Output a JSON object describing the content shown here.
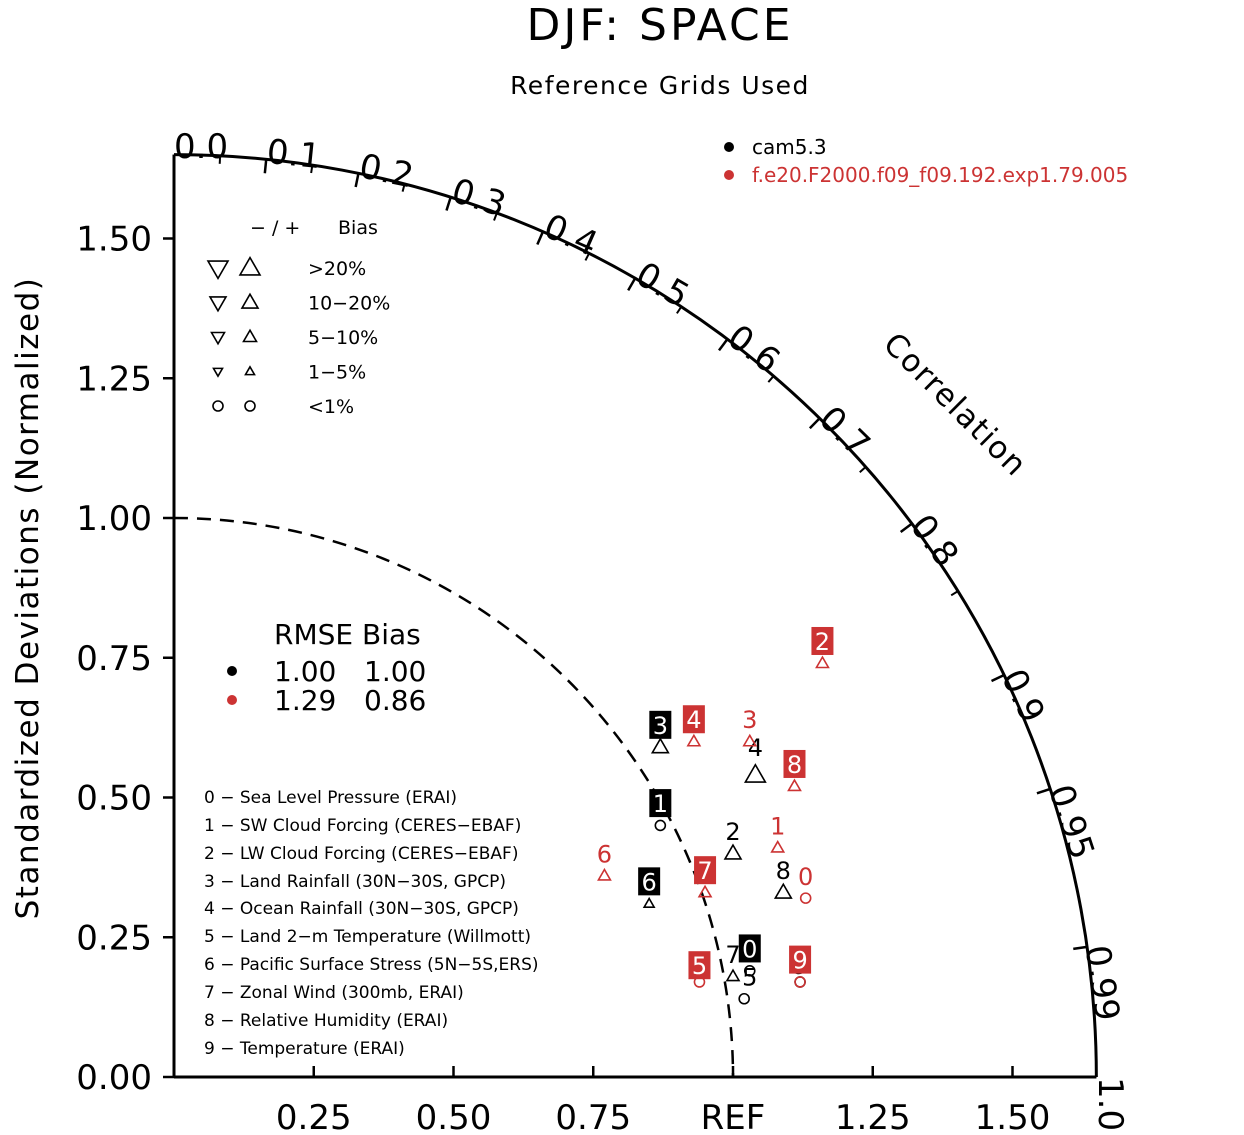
{
  "chart_data": {
    "type": "scatter",
    "subtype": "taylor-diagram",
    "title": "DJF: SPACE",
    "subtitle": "Reference Grids Used",
    "ylabel": "Standardized Deviations (Normalized)",
    "angular_label": "Correlation",
    "std_range": [
      0,
      1.65
    ],
    "std_ticks": [
      "0.00",
      "0.25",
      "0.50",
      "0.75",
      "1.00",
      "1.25",
      "1.50"
    ],
    "x_ticks": [
      "0.25",
      "0.50",
      "0.75",
      "REF",
      "1.25",
      "1.50"
    ],
    "corr_ticks": [
      {
        "value": 0.0,
        "label": "0.0"
      },
      {
        "value": 0.1,
        "label": "0.1"
      },
      {
        "value": 0.2,
        "label": "0.2"
      },
      {
        "value": 0.3,
        "label": "0.3"
      },
      {
        "value": 0.4,
        "label": "0.4"
      },
      {
        "value": 0.5,
        "label": "0.5"
      },
      {
        "value": 0.6,
        "label": "0.6"
      },
      {
        "value": 0.7,
        "label": "0.7"
      },
      {
        "value": 0.8,
        "label": "0.8"
      },
      {
        "value": 0.9,
        "label": "0.9"
      },
      {
        "value": 0.95,
        "label": "0.95"
      },
      {
        "value": 0.99,
        "label": "0.99"
      },
      {
        "value": 1.0,
        "label": "1.0"
      }
    ],
    "reference_std": 1.0,
    "series": [
      {
        "name": "cam5.3",
        "color": "#000000",
        "rmse": "1.00",
        "bias": "1.00",
        "points": [
          {
            "id": "0",
            "x": 1.03,
            "y": 0.23,
            "boxed": true,
            "mx": 1.03,
            "my": 0.19,
            "marker": "circle",
            "size": 5
          },
          {
            "id": "1",
            "x": 0.87,
            "y": 0.49,
            "boxed": true,
            "mx": 0.87,
            "my": 0.45,
            "marker": "circle",
            "size": 5
          },
          {
            "id": "2",
            "x": 1.0,
            "y": 0.44,
            "boxed": false,
            "mx": 1.0,
            "my": 0.4,
            "marker": "up",
            "size": 8
          },
          {
            "id": "3",
            "x": 0.87,
            "y": 0.63,
            "boxed": true,
            "mx": 0.87,
            "my": 0.59,
            "marker": "up",
            "size": 8
          },
          {
            "id": "4",
            "x": 1.04,
            "y": 0.59,
            "boxed": false,
            "mx": 1.04,
            "my": 0.54,
            "marker": "up",
            "size": 10
          },
          {
            "id": "5",
            "x": 1.03,
            "y": 0.18,
            "boxed": false,
            "mx": 1.02,
            "my": 0.14,
            "marker": "circle",
            "size": 5
          },
          {
            "id": "6",
            "x": 0.85,
            "y": 0.35,
            "boxed": true,
            "mx": 0.85,
            "my": 0.31,
            "marker": "up",
            "size": 5
          },
          {
            "id": "7",
            "x": 1.0,
            "y": 0.22,
            "boxed": false,
            "mx": 1.0,
            "my": 0.18,
            "marker": "up",
            "size": 6
          },
          {
            "id": "8",
            "x": 1.09,
            "y": 0.37,
            "boxed": false,
            "mx": 1.09,
            "my": 0.33,
            "marker": "up",
            "size": 8
          },
          {
            "id": "9",
            "x": 1.12,
            "y": 0.2,
            "boxed": false,
            "mx": 1.12,
            "my": 0.17,
            "marker": "circle",
            "size": 5
          }
        ]
      },
      {
        "name": "f.e20.F2000.f09_f09.192.exp1.79.005",
        "color": "#cc3333",
        "rmse": "1.29",
        "bias": "0.86",
        "points": [
          {
            "id": "0",
            "x": 1.13,
            "y": 0.36,
            "boxed": false,
            "mx": 1.13,
            "my": 0.32,
            "marker": "circle",
            "size": 5
          },
          {
            "id": "1",
            "x": 1.08,
            "y": 0.45,
            "boxed": false,
            "mx": 1.08,
            "my": 0.41,
            "marker": "up",
            "size": 6
          },
          {
            "id": "2",
            "x": 1.16,
            "y": 0.78,
            "boxed": true,
            "mx": 1.16,
            "my": 0.74,
            "marker": "up",
            "size": 6
          },
          {
            "id": "3",
            "x": 1.03,
            "y": 0.64,
            "boxed": false,
            "mx": 1.03,
            "my": 0.6,
            "marker": "up",
            "size": 6
          },
          {
            "id": "4",
            "x": 0.93,
            "y": 0.64,
            "boxed": true,
            "mx": 0.93,
            "my": 0.6,
            "marker": "up",
            "size": 6
          },
          {
            "id": "5",
            "x": 0.94,
            "y": 0.2,
            "boxed": true,
            "mx": 0.94,
            "my": 0.17,
            "marker": "circle",
            "size": 5
          },
          {
            "id": "6",
            "x": 0.77,
            "y": 0.4,
            "boxed": false,
            "mx": 0.77,
            "my": 0.36,
            "marker": "up",
            "size": 6
          },
          {
            "id": "7",
            "x": 0.95,
            "y": 0.37,
            "boxed": true,
            "mx": 0.95,
            "my": 0.33,
            "marker": "up",
            "size": 6
          },
          {
            "id": "8",
            "x": 1.11,
            "y": 0.56,
            "boxed": true,
            "mx": 1.11,
            "my": 0.52,
            "marker": "up",
            "size": 6
          },
          {
            "id": "9",
            "x": 1.12,
            "y": 0.21,
            "boxed": true,
            "mx": 1.12,
            "my": 0.17,
            "marker": "circle",
            "size": 5
          }
        ]
      }
    ],
    "bias_legend": {
      "header_sign": "− / +",
      "header_label": "Bias",
      "rows": [
        {
          "label": ">20%",
          "size": 10,
          "marker": "triangle"
        },
        {
          "label": "10−20%",
          "size": 8,
          "marker": "triangle"
        },
        {
          "label": "5−10%",
          "size": 6.5,
          "marker": "triangle"
        },
        {
          "label": "1−5%",
          "size": 4.5,
          "marker": "triangle"
        },
        {
          "label": "<1%",
          "size": 5,
          "marker": "circle"
        }
      ]
    },
    "rmse_header": "RMSE Bias",
    "variables": [
      "0 − Sea Level Pressure (ERAI)",
      "1 − SW Cloud Forcing (CERES−EBAF)",
      "2 − LW Cloud Forcing (CERES−EBAF)",
      "3 − Land Rainfall (30N−30S, GPCP)",
      "4 − Ocean Rainfall (30N−30S, GPCP)",
      "5 − Land 2−m Temperature (Willmott)",
      "6 − Pacific Surface Stress (5N−5S,ERS)",
      "7 − Zonal Wind (300mb, ERAI)",
      "8 − Relative Humidity (ERAI)",
      "9 − Temperature (ERAI)"
    ]
  }
}
